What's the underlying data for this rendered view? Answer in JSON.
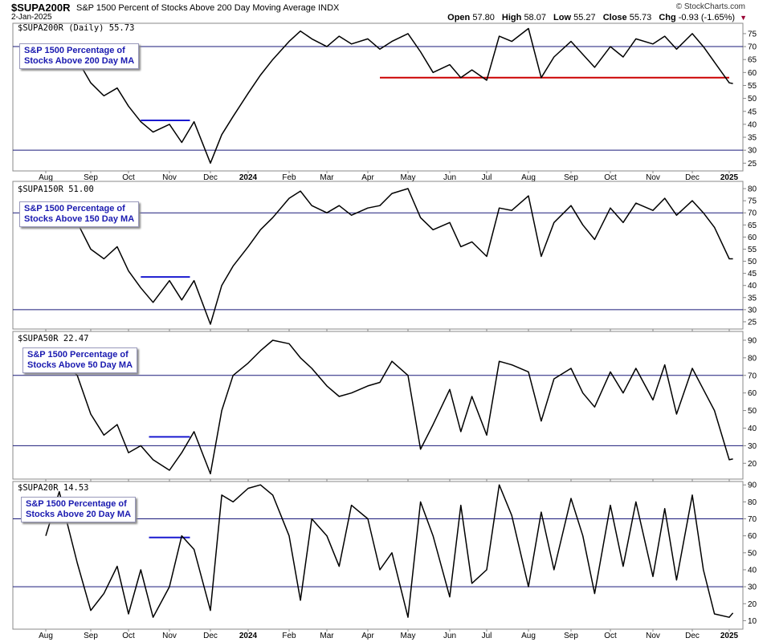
{
  "header": {
    "symbol": "$SUPA200R",
    "name": "S&P 1500 Percent of Stocks Above 200 Day Moving Average",
    "exchange": "INDX",
    "date": "2-Jan-2025",
    "brand": "© StockCharts.com",
    "open_label": "Open",
    "open": "57.80",
    "high_label": "High",
    "high": "58.07",
    "low_label": "Low",
    "low": "55.27",
    "close_label": "Close",
    "close": "55.73",
    "chg_label": "Chg",
    "chg": "-0.93 (-1.65%)",
    "chg_icon": "down-triangle-icon"
  },
  "colors": {
    "line": "#000000",
    "hline": "#1a1a7a",
    "annotation_blue": "#1a1ad0",
    "annotation_red": "#cc0000",
    "label_text": "#1a1ab0"
  },
  "chart_data": [
    {
      "type": "line",
      "title": "$SUPA200R (Daily) 55.73",
      "legend": "S&P 1500 Percentage of Stocks Above 200 Day MA",
      "legend_lines": [
        "S&P 1500 Percentage of",
        "Stocks Above 200 Day MA"
      ],
      "months": [
        "Aug",
        "Sep",
        "Oct",
        "Nov",
        "Dec",
        "2024",
        "Feb",
        "Mar",
        "Apr",
        "May",
        "Jun",
        "Jul",
        "Aug",
        "Sep",
        "Oct",
        "Nov",
        "Dec",
        "2025"
      ],
      "bold_months": [
        "2024",
        "2025"
      ],
      "ylim": [
        22,
        79
      ],
      "yticks": [
        25,
        30,
        35,
        40,
        45,
        50,
        55,
        60,
        65,
        70,
        75
      ],
      "hlines": [
        30,
        70
      ],
      "series": {
        "name": "$SUPA200R",
        "t": [
          0,
          0.3,
          0.7,
          1,
          1.35,
          1.7,
          2,
          2.3,
          2.6,
          3,
          3.3,
          3.6,
          4,
          4.3,
          4.6,
          5,
          5.3,
          5.6,
          6,
          6.3,
          6.6,
          7,
          7.3,
          7.6,
          8,
          8.3,
          8.6,
          9,
          9.3,
          9.6,
          10,
          10.3,
          10.6,
          11,
          11.3,
          11.6,
          12,
          12.3,
          12.6,
          13,
          13.3,
          13.6,
          14,
          14.3,
          14.6,
          15,
          15.3,
          15.6,
          16,
          16.3,
          16.6,
          17,
          17.1
        ],
        "values": [
          66,
          71,
          65,
          56,
          51,
          54,
          47,
          41,
          37,
          40,
          33,
          41,
          25,
          36,
          43,
          52,
          59,
          65,
          72,
          76,
          73,
          70,
          74,
          71,
          73,
          69,
          72,
          75,
          68,
          60,
          63,
          58,
          61,
          57,
          74,
          72,
          77,
          58,
          66,
          72,
          67,
          62,
          70,
          66,
          73,
          71,
          74,
          69,
          75,
          70,
          64,
          56,
          55.73
        ]
      },
      "annotations": [
        {
          "kind": "hline",
          "color": "blue",
          "y": 41.5,
          "t0": 2.3,
          "t1": 3.5
        },
        {
          "kind": "hline",
          "color": "red",
          "y": 58,
          "t0": 8.3,
          "t1": 17.0
        }
      ]
    },
    {
      "type": "line",
      "title": "$SUPA150R 51.00",
      "legend": "S&P 1500 Percentage of Stocks Above 150 Day MA",
      "legend_lines": [
        "S&P 1500 Percentage of",
        "Stocks Above 150 Day MA"
      ],
      "months": [],
      "bold_months": [],
      "ylim": [
        22,
        83
      ],
      "yticks": [
        25,
        30,
        35,
        40,
        45,
        50,
        55,
        60,
        65,
        70,
        75,
        80
      ],
      "hlines": [
        30,
        70
      ],
      "series": {
        "name": "$SUPA150R",
        "t": [
          0,
          0.3,
          0.7,
          1,
          1.35,
          1.7,
          2,
          2.3,
          2.6,
          3,
          3.3,
          3.6,
          4,
          4.3,
          4.6,
          5,
          5.3,
          5.6,
          6,
          6.3,
          6.6,
          7,
          7.3,
          7.6,
          8,
          8.3,
          8.6,
          9,
          9.3,
          9.6,
          10,
          10.3,
          10.6,
          11,
          11.3,
          11.6,
          12,
          12.3,
          12.6,
          13,
          13.3,
          13.6,
          14,
          14.3,
          14.6,
          15,
          15.3,
          15.6,
          16,
          16.3,
          16.6,
          17,
          17.1
        ],
        "values": [
          67,
          73,
          66,
          55,
          51,
          56,
          46,
          39,
          33,
          42,
          34,
          42,
          24,
          40,
          48,
          56,
          63,
          68,
          76,
          79,
          73,
          70,
          73,
          69,
          72,
          73,
          78,
          80,
          68,
          63,
          66,
          56,
          58,
          52,
          72,
          71,
          77,
          52,
          66,
          73,
          65,
          59,
          72,
          66,
          74,
          71,
          76,
          69,
          75,
          70,
          64,
          51,
          51.0
        ]
      },
      "annotations": [
        {
          "kind": "hline",
          "color": "blue",
          "y": 43.5,
          "t0": 2.3,
          "t1": 3.5
        }
      ]
    },
    {
      "type": "line",
      "title": "$SUPA50R 22.47",
      "legend": "S&P 1500 Percentage of Stocks Above 50 Day MA",
      "legend_lines": [
        "S&P 1500 Percentage of",
        "Stocks Above 50 Day MA"
      ],
      "months": [],
      "bold_months": [],
      "ylim": [
        11,
        95
      ],
      "yticks": [
        20,
        30,
        40,
        50,
        60,
        70,
        80,
        90
      ],
      "hlines": [
        30,
        70
      ],
      "series": {
        "name": "$SUPA50R",
        "t": [
          0,
          0.3,
          0.7,
          1,
          1.35,
          1.7,
          2,
          2.3,
          2.6,
          3,
          3.3,
          3.6,
          4,
          4.3,
          4.6,
          5,
          5.3,
          5.6,
          6,
          6.3,
          6.6,
          7,
          7.3,
          7.6,
          8,
          8.3,
          8.6,
          9,
          9.3,
          9.6,
          10,
          10.3,
          10.6,
          11,
          11.3,
          11.6,
          12,
          12.3,
          12.6,
          13,
          13.3,
          13.6,
          14,
          14.3,
          14.6,
          15,
          15.3,
          15.6,
          16,
          16.3,
          16.6,
          17,
          17.1
        ],
        "values": [
          72,
          80,
          70,
          48,
          36,
          42,
          26,
          30,
          22,
          16,
          26,
          38,
          14,
          50,
          70,
          77,
          84,
          90,
          88,
          80,
          74,
          64,
          58,
          60,
          64,
          66,
          78,
          70,
          28,
          42,
          62,
          38,
          58,
          36,
          78,
          76,
          72,
          44,
          68,
          74,
          60,
          52,
          72,
          60,
          74,
          56,
          76,
          48,
          74,
          62,
          50,
          22,
          22.47
        ]
      },
      "annotations": [
        {
          "kind": "hline",
          "color": "blue",
          "y": 35,
          "t0": 2.5,
          "t1": 3.5
        }
      ]
    },
    {
      "type": "line",
      "title": "$SUPA20R 14.53",
      "legend": "S&P 1500 Percentage of Stocks Above 20 Day MA",
      "legend_lines": [
        "S&P 1500 Percentage of",
        "Stocks Above 20 Day MA"
      ],
      "months": [
        "Aug",
        "Sep",
        "Oct",
        "Nov",
        "Dec",
        "2024",
        "Feb",
        "Mar",
        "Apr",
        "May",
        "Jun",
        "Jul",
        "Aug",
        "Sep",
        "Oct",
        "Nov",
        "Dec",
        "2025"
      ],
      "bold_months": [
        "2024",
        "2025"
      ],
      "ylim": [
        5,
        92
      ],
      "yticks": [
        10,
        20,
        30,
        40,
        50,
        60,
        70,
        80,
        90
      ],
      "hlines": [
        30,
        70
      ],
      "series": {
        "name": "$SUPA20R",
        "t": [
          0,
          0.3,
          0.7,
          1,
          1.35,
          1.7,
          2,
          2.3,
          2.6,
          3,
          3.3,
          3.6,
          4,
          4.3,
          4.6,
          5,
          5.3,
          5.6,
          6,
          6.3,
          6.6,
          7,
          7.3,
          7.6,
          8,
          8.3,
          8.6,
          9,
          9.3,
          9.6,
          10,
          10.3,
          10.6,
          11,
          11.3,
          11.6,
          12,
          12.3,
          12.6,
          13,
          13.3,
          13.6,
          14,
          14.3,
          14.6,
          15,
          15.3,
          15.6,
          16,
          16.3,
          16.6,
          17,
          17.1
        ],
        "values": [
          60,
          86,
          44,
          16,
          26,
          42,
          14,
          40,
          12,
          30,
          60,
          52,
          16,
          84,
          80,
          88,
          90,
          84,
          60,
          22,
          70,
          60,
          42,
          78,
          70,
          40,
          50,
          12,
          80,
          60,
          24,
          78,
          32,
          40,
          90,
          72,
          30,
          74,
          40,
          82,
          60,
          26,
          78,
          42,
          80,
          36,
          76,
          34,
          84,
          40,
          14,
          12,
          14.53
        ]
      },
      "annotations": [
        {
          "kind": "hline",
          "color": "blue",
          "y": 59,
          "t0": 2.5,
          "t1": 3.5
        }
      ]
    }
  ]
}
